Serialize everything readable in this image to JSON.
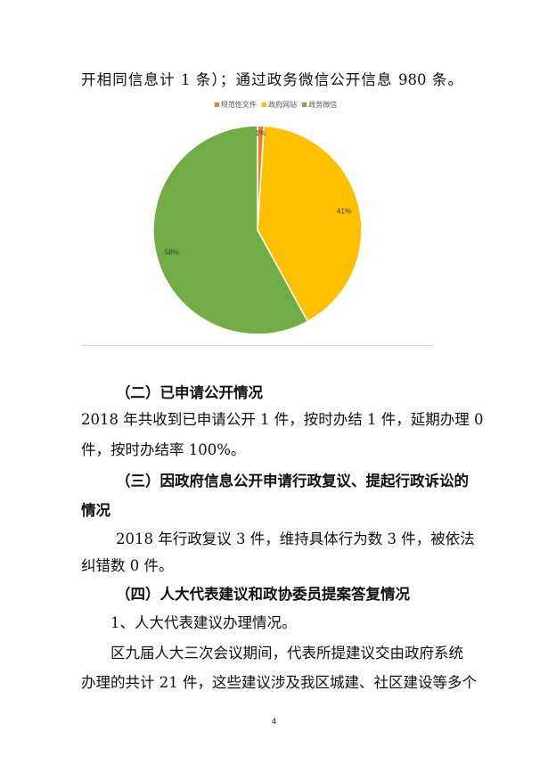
{
  "lines": [
    "开相同信息计 1 条）；通过政务微信公开信息 980 条。",
    "（二）已申请公开情况",
    "2018 年共收到已申请公开 1 件，按时办结 1 件，延期办理 0",
    "件，按时办结率 100%。",
    "（三）因政府信息公开申请行政复议、提起行政诉讼的",
    "情况",
    "2018 年行政复议 3 件，维持具体行为数 3 件，被依法",
    "纠错数 0 件。",
    "（四）人大代表建议和政协委员提案答复情况",
    "1、人大代表建议办理情况。",
    "区九届人大三次会议期间，代表所提建议交由政府系统",
    "办理的共计 21 件，这些建议涉及我区城建、社区建设等多个"
  ],
  "page_number": "4",
  "chart_data": {
    "type": "pie",
    "categories": [
      "规范性文件",
      "政府网站",
      "政务微信"
    ],
    "values": [
      1,
      41,
      58
    ],
    "labels": [
      "1%",
      "41%",
      "58%"
    ],
    "colors": [
      "#ED7D31",
      "#FFC000",
      "#70AD47"
    ],
    "legend": "top"
  }
}
